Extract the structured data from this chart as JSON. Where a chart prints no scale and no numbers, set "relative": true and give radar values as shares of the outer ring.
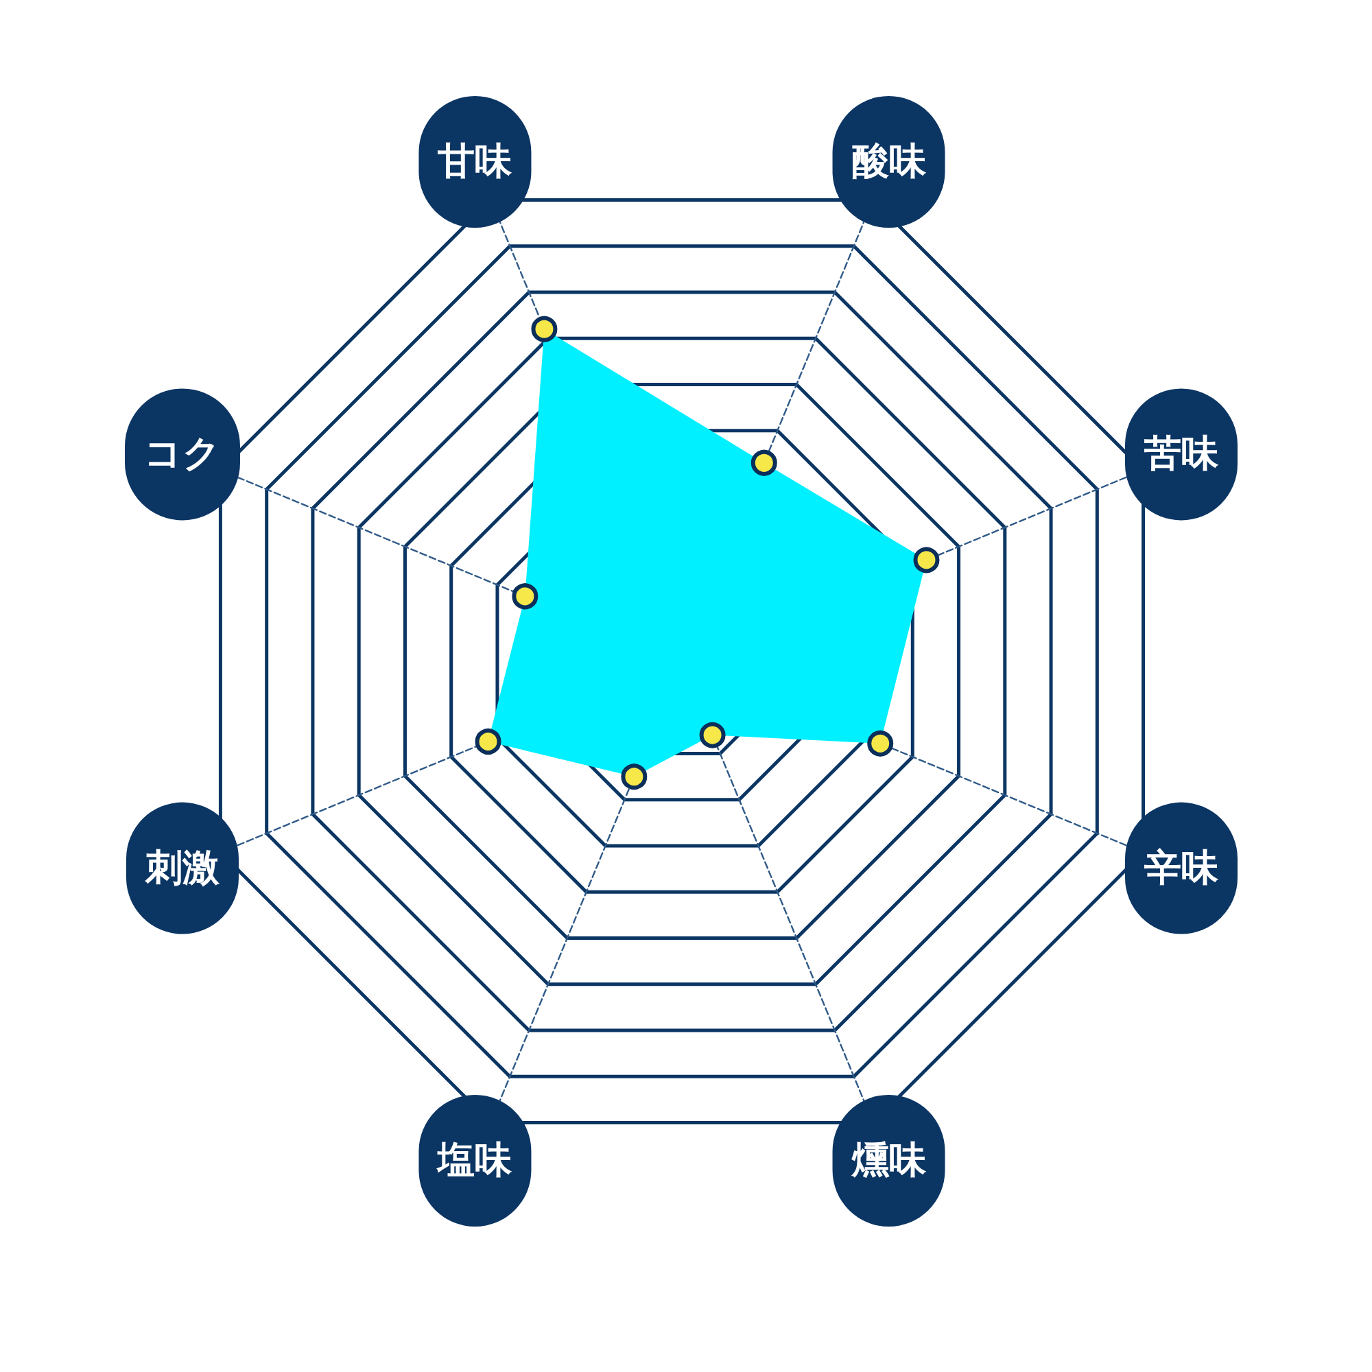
{
  "chart_data": {
    "type": "radar",
    "relative": true,
    "grid": true,
    "marker": "circle",
    "categories": [
      "甘味",
      "酸味",
      "苦味",
      "辛味",
      "燻味",
      "塩味",
      "刺激",
      "コク"
    ],
    "series": [
      {
        "color": "#00f0ff",
        "values": [
          0.72,
          0.43,
          0.53,
          0.43,
          0.16,
          0.25,
          0.42,
          0.34
        ]
      }
    ]
  }
}
